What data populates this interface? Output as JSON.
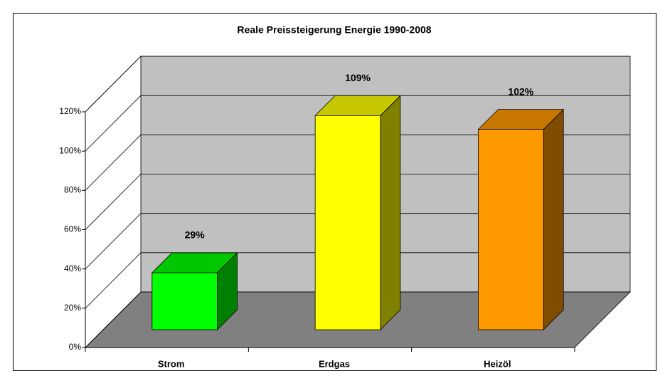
{
  "chart_data": {
    "type": "bar",
    "title": "Reale Preissteigerung Energie 1990-2008",
    "categories": [
      "Strom",
      "Erdgas",
      "Heizöl"
    ],
    "values": [
      29,
      109,
      102
    ],
    "value_labels": [
      "29%",
      "109%",
      "102%"
    ],
    "colors": [
      "#00ff00",
      "#ffff00",
      "#ff9900"
    ],
    "ylim": [
      0,
      120
    ],
    "yticks": [
      {
        "value": 0,
        "label": "0%"
      },
      {
        "value": 20,
        "label": "20%"
      },
      {
        "value": 40,
        "label": "40%"
      },
      {
        "value": 60,
        "label": "60%"
      },
      {
        "value": 80,
        "label": "80%"
      },
      {
        "value": 100,
        "label": "100%"
      },
      {
        "value": 120,
        "label": "120%"
      }
    ],
    "grid": true
  }
}
